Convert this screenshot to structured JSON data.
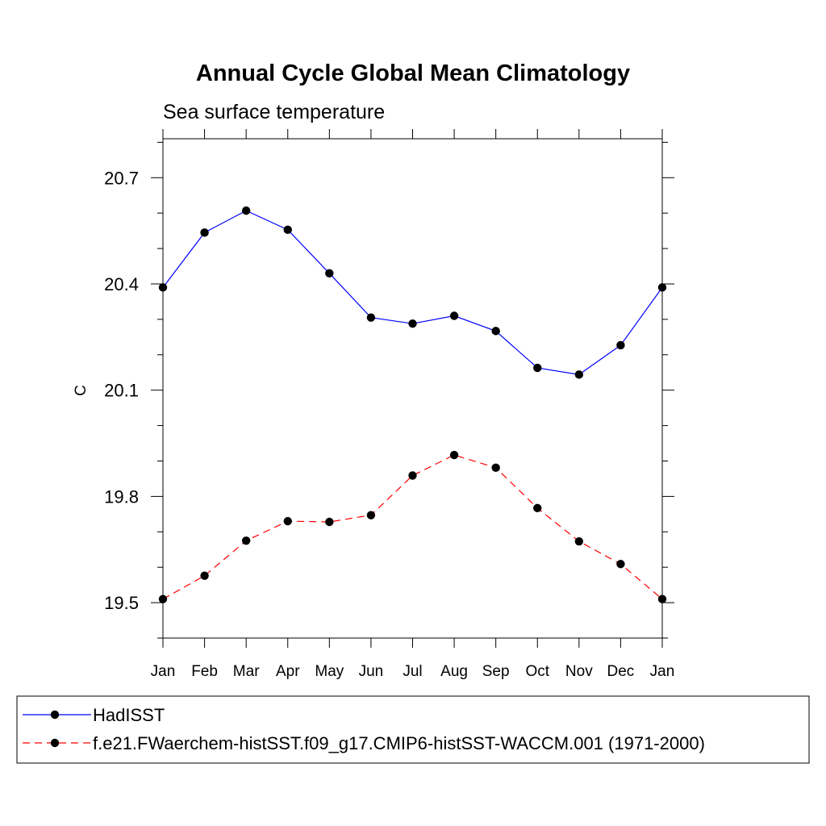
{
  "chart_data": {
    "type": "line",
    "title": "Annual Cycle Global Mean Climatology",
    "subtitle": "Sea surface temperature",
    "xlabel": "",
    "ylabel": "C",
    "categories": [
      "Jan",
      "Feb",
      "Mar",
      "Apr",
      "May",
      "Jun",
      "Jul",
      "Aug",
      "Sep",
      "Oct",
      "Nov",
      "Dec",
      "Jan"
    ],
    "yticks": [
      "19.5",
      "19.8",
      "20.1",
      "20.4",
      "20.7"
    ],
    "ytick_values": [
      19.5,
      19.8,
      20.1,
      20.4,
      20.7
    ],
    "ylim": [
      19.4,
      20.81
    ],
    "grid": false,
    "legend_position": "bottom",
    "series": [
      {
        "name": "HadISST",
        "color": "#0000ff",
        "line_style": "solid",
        "marker": "filled-circle",
        "values": [
          20.39,
          20.545,
          20.607,
          20.553,
          20.43,
          20.305,
          20.288,
          20.31,
          20.267,
          20.163,
          20.144,
          20.227,
          20.39
        ]
      },
      {
        "name": "f.e21.FWaerchem-histSST.f09_g17.CMIP6-histSST-WACCM.001 (1971-2000)",
        "color": "#ff0000",
        "line_style": "dashed",
        "marker": "filled-circle",
        "values": [
          19.51,
          19.576,
          19.675,
          19.73,
          19.728,
          19.747,
          19.859,
          19.917,
          19.881,
          19.767,
          19.673,
          19.609,
          19.51
        ]
      }
    ]
  }
}
